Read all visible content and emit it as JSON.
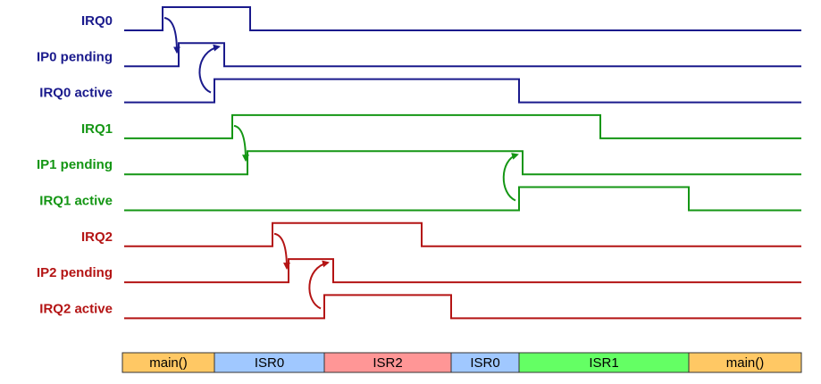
{
  "colors": {
    "group0": "#1a1a8c",
    "group1": "#149614",
    "group2": "#b41414"
  },
  "signals": [
    {
      "id": "irq0",
      "label": "IRQ0",
      "group": "group0",
      "initial": 0,
      "transitions": [
        "irq0_rise",
        "irq0_fall"
      ]
    },
    {
      "id": "ip0",
      "label": "IP0 pending",
      "group": "group0",
      "initial": 0,
      "transitions": [
        "ip0_rise",
        "ip0_fall"
      ]
    },
    {
      "id": "irq0act",
      "label": "IRQ0 active",
      "group": "group0",
      "initial": 0,
      "transitions": [
        "irq0act_rise",
        "irq0act_fall"
      ]
    },
    {
      "id": "irq1",
      "label": "IRQ1",
      "group": "group1",
      "initial": 0,
      "transitions": [
        "irq1_rise",
        "irq1_fall"
      ]
    },
    {
      "id": "ip1",
      "label": "IP1 pending",
      "group": "group1",
      "initial": 0,
      "transitions": [
        "ip1_rise",
        "ip1_fall"
      ]
    },
    {
      "id": "irq1act",
      "label": "IRQ1 active",
      "group": "group1",
      "initial": 0,
      "transitions": [
        "irq1act_rise",
        "irq1act_fall"
      ]
    },
    {
      "id": "irq2",
      "label": "IRQ2",
      "group": "group2",
      "initial": 0,
      "transitions": [
        "irq2_rise",
        "irq2_fall"
      ]
    },
    {
      "id": "ip2",
      "label": "IP2 pending",
      "group": "group2",
      "initial": 0,
      "transitions": [
        "ip2_rise",
        "ip2_fall"
      ]
    },
    {
      "id": "irq2act",
      "label": "IRQ2 active",
      "group": "group2",
      "initial": 0,
      "transitions": [
        "irq2act_rise",
        "irq2act_fall"
      ]
    }
  ],
  "causal_links": [
    {
      "from": "irq0",
      "to": "ip0",
      "group": "group0",
      "style": "trigger"
    },
    {
      "from": "irq0act",
      "to": "ip0",
      "group": "group0",
      "style": "clear"
    },
    {
      "from": "irq1",
      "to": "ip1",
      "group": "group1",
      "style": "trigger"
    },
    {
      "from": "irq1act",
      "to": "ip1",
      "group": "group1",
      "style": "clear"
    },
    {
      "from": "irq2",
      "to": "ip2",
      "group": "group2",
      "style": "trigger"
    },
    {
      "from": "irq2act",
      "to": "ip2",
      "group": "group2",
      "style": "clear"
    }
  ],
  "execution_bar": [
    {
      "label": "main()",
      "color": "#ffc864",
      "span": [
        "bar_start",
        "irq0act_rise"
      ]
    },
    {
      "label": "ISR0",
      "color": "#a0c8ff",
      "span": [
        "irq0act_rise",
        "irq2act_rise"
      ]
    },
    {
      "label": "ISR2",
      "color": "#ff9696",
      "span": [
        "irq2act_rise",
        "irq2act_fall"
      ]
    },
    {
      "label": "ISR0",
      "color": "#a0c8ff",
      "span": [
        "irq2act_fall",
        "irq0act_fall"
      ]
    },
    {
      "label": "ISR1",
      "color": "#64ff64",
      "span": [
        "irq0act_fall",
        "irq1act_fall"
      ]
    },
    {
      "label": "main()",
      "color": "#ffc864",
      "span": [
        "irq1act_fall",
        "bar_end"
      ]
    }
  ]
}
